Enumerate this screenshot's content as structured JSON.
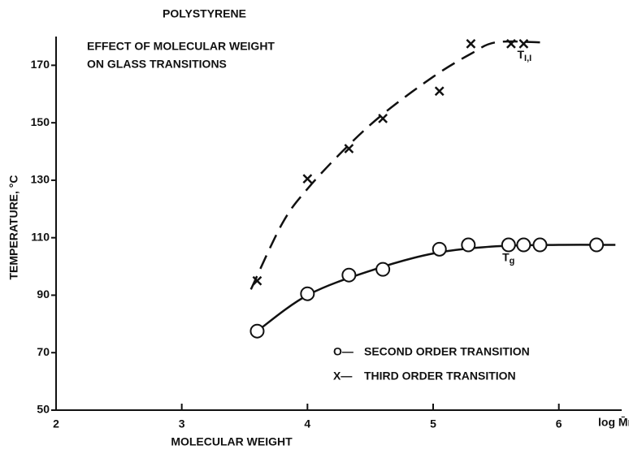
{
  "chart_data": {
    "type": "scatter",
    "title": "POLYSTYRENE",
    "subtitle": [
      "EFFECT OF MOLECULAR WEIGHT",
      "ON GLASS TRANSITIONS"
    ],
    "xlabel": "MOLECULAR WEIGHT",
    "xlabel_right": "log M̄n",
    "ylabel": "TEMPERATURE, °C",
    "xlim": [
      2,
      6.5
    ],
    "ylim": [
      50,
      180
    ],
    "xticks": [
      2,
      3,
      4,
      5,
      6
    ],
    "yticks": [
      50,
      70,
      90,
      110,
      130,
      150,
      170
    ],
    "color": "#111111",
    "series": [
      {
        "name": "SECOND ORDER TRANSITION",
        "legend_symbol": "O—",
        "marker": "circle",
        "x": [
          3.6,
          4.0,
          4.33,
          4.6,
          5.05,
          5.28,
          5.6,
          5.72,
          5.85,
          6.3
        ],
        "values": [
          77.5,
          90.5,
          97,
          99,
          106,
          107.5,
          107.5,
          107.5,
          107.5,
          107.5
        ]
      },
      {
        "name": "THIRD ORDER TRANSITION",
        "legend_symbol": "X—",
        "marker": "x",
        "x": [
          3.6,
          4.0,
          4.33,
          4.6,
          5.05,
          5.3,
          5.62,
          5.72
        ],
        "values": [
          95,
          130.5,
          141,
          151.5,
          161,
          177.5,
          177.5,
          177.5
        ]
      }
    ],
    "curves": [
      {
        "name": "T",
        "subscript": "g",
        "dash": false,
        "x": [
          3.6,
          4.0,
          4.5,
          5.0,
          5.5,
          6.0,
          6.45
        ],
        "values": [
          77.5,
          90,
          98.5,
          104.5,
          107,
          107.5,
          107.5
        ]
      },
      {
        "name": "T",
        "subscript": "I,I",
        "dash": true,
        "x": [
          3.55,
          3.8,
          4.0,
          4.3,
          4.6,
          5.0,
          5.3,
          5.5,
          5.85
        ],
        "values": [
          92,
          115,
          127,
          141,
          153,
          166,
          174,
          178,
          178
        ]
      }
    ]
  }
}
